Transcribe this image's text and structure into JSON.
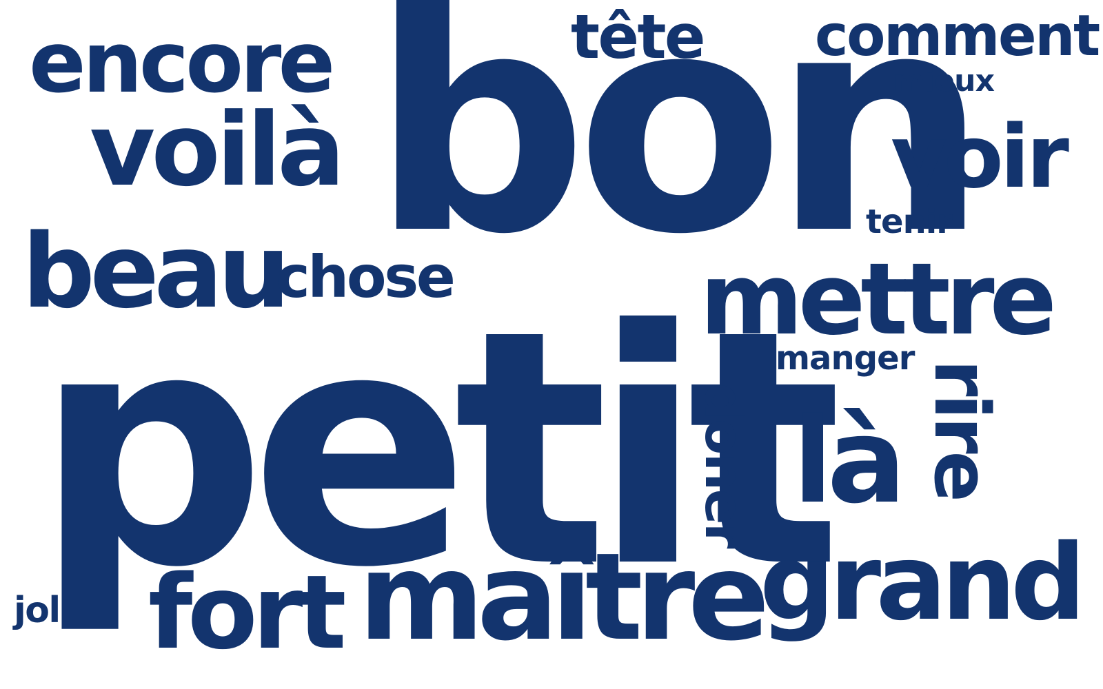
{
  "colors": {
    "text": "#13346e",
    "background": "#ffffff"
  },
  "words": {
    "bon": "bon",
    "petit": "petit",
    "encore": "encore",
    "voila": "voilà",
    "beau": "beau",
    "chose": "chose",
    "tete": "tête",
    "comment": "comment",
    "mieux": "mieux",
    "voir": "voir",
    "tenir": "tenir",
    "mettre": "mettre",
    "manger": "manger",
    "doner": "doner",
    "la": "là",
    "rire": "rire",
    "fort": "fort",
    "maitre": "maître",
    "grand": "grand",
    "joli": "joli"
  }
}
